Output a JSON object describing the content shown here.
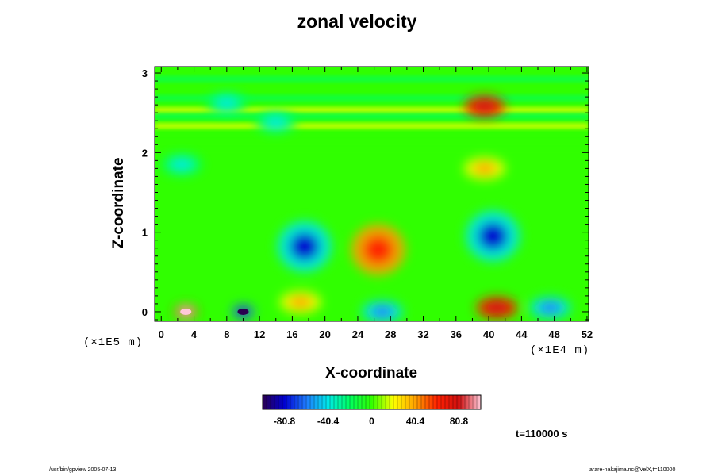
{
  "chart_data": {
    "type": "heatmap",
    "title": "zonal velocity",
    "xlabel": "X-coordinate",
    "ylabel": "Z-coordinate",
    "x_scale_label": "(×1E4 m)",
    "y_scale_label": "(×1E5 m)",
    "xlim": [
      -0.8,
      52.2
    ],
    "ylim": [
      -0.12,
      3.08
    ],
    "x_ticks": [
      0,
      4,
      8,
      12,
      16,
      20,
      24,
      28,
      32,
      36,
      40,
      44,
      48,
      52
    ],
    "y_ticks": [
      0,
      1,
      2,
      3
    ],
    "colorbar": {
      "ticks": [
        -80.8,
        -40.4,
        0,
        40.4,
        80.8
      ],
      "range": [
        -101,
        101
      ],
      "colormap": [
        "#2a0050",
        "#0000d0",
        "#1e7cff",
        "#00e8e8",
        "#00ff60",
        "#30ff00",
        "#ffff00",
        "#ffa000",
        "#ff2000",
        "#d01010",
        "#ffc8d8"
      ]
    },
    "features": [
      {
        "x": 17.5,
        "z": 0.82,
        "value": -75
      },
      {
        "x": 26.5,
        "z": 0.78,
        "value": 65
      },
      {
        "x": 40.5,
        "z": 0.95,
        "value": -72
      },
      {
        "x": 3,
        "z": 0.0,
        "value": 110
      },
      {
        "x": 10,
        "z": 0.0,
        "value": -101
      },
      {
        "x": 17,
        "z": 0.12,
        "value": 50
      },
      {
        "x": 27,
        "z": 0.0,
        "value": -70
      },
      {
        "x": 41,
        "z": 0.05,
        "value": 90
      },
      {
        "x": 47.5,
        "z": 0.05,
        "value": -55
      },
      {
        "x": 2.5,
        "z": 1.85,
        "value": -45
      },
      {
        "x": 39.5,
        "z": 1.8,
        "value": 50
      },
      {
        "x": 39.5,
        "z": 2.58,
        "value": 85
      },
      {
        "x": 14,
        "z": 2.38,
        "value": -40
      },
      {
        "x": 8,
        "z": 2.62,
        "value": -35
      }
    ],
    "time_label": "t=110000 s"
  },
  "footer": {
    "left": "/usr/bin/gpview 2005-07-13",
    "right": "arare-nakajima.nc@VelX,t=110000"
  }
}
